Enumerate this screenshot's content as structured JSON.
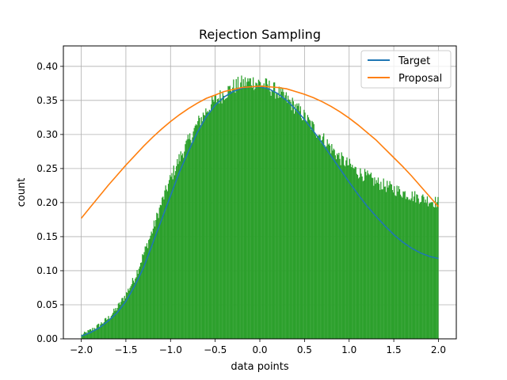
{
  "chart_data": {
    "type": "bar",
    "title": "Rejection Sampling",
    "xlabel": "data points",
    "ylabel": "count",
    "xlim": [
      -2.2,
      2.2
    ],
    "ylim": [
      0.0,
      0.43
    ],
    "x_ticks": [
      -2.0,
      -1.5,
      -1.0,
      -0.5,
      0.0,
      0.5,
      1.0,
      1.5,
      2.0
    ],
    "x_tick_labels": [
      "−2.0",
      "−1.5",
      "−1.0",
      "−0.5",
      "0.0",
      "0.5",
      "1.0",
      "1.5",
      "2.0"
    ],
    "y_ticks": [
      0.0,
      0.05,
      0.1,
      0.15,
      0.2,
      0.25,
      0.3,
      0.35,
      0.4
    ],
    "y_tick_labels": [
      "0.00",
      "0.05",
      "0.10",
      "0.15",
      "0.20",
      "0.25",
      "0.30",
      "0.35",
      "0.40"
    ],
    "grid": true,
    "legend": {
      "position": "top-right",
      "entries": [
        "Target",
        "Proposal"
      ]
    },
    "histogram": {
      "color": "#2ca02c",
      "bin_edges_range": [
        -2.0,
        2.0
      ],
      "bins": 400,
      "profile_x": [
        -2.0,
        -1.9,
        -1.8,
        -1.7,
        -1.6,
        -1.5,
        -1.4,
        -1.3,
        -1.2,
        -1.1,
        -1.0,
        -0.9,
        -0.8,
        -0.7,
        -0.6,
        -0.5,
        -0.4,
        -0.3,
        -0.2,
        -0.1,
        0.0,
        0.1,
        0.2,
        0.3,
        0.4,
        0.5,
        0.6,
        0.7,
        0.8,
        0.9,
        1.0,
        1.1,
        1.2,
        1.3,
        1.4,
        1.5,
        1.6,
        1.7,
        1.8,
        1.9,
        2.0
      ],
      "profile_y": [
        0.005,
        0.012,
        0.02,
        0.03,
        0.045,
        0.065,
        0.09,
        0.125,
        0.16,
        0.2,
        0.235,
        0.265,
        0.29,
        0.315,
        0.335,
        0.35,
        0.36,
        0.37,
        0.375,
        0.378,
        0.375,
        0.37,
        0.362,
        0.352,
        0.34,
        0.326,
        0.31,
        0.295,
        0.28,
        0.265,
        0.255,
        0.245,
        0.238,
        0.23,
        0.225,
        0.22,
        0.215,
        0.21,
        0.207,
        0.203,
        0.2
      ],
      "noise_amplitude": 0.012
    },
    "series": [
      {
        "name": "Target",
        "color": "#1f77b4",
        "x": [
          -2.0,
          -1.9,
          -1.8,
          -1.7,
          -1.6,
          -1.5,
          -1.4,
          -1.3,
          -1.2,
          -1.1,
          -1.0,
          -0.9,
          -0.8,
          -0.7,
          -0.6,
          -0.5,
          -0.4,
          -0.3,
          -0.2,
          -0.1,
          0.0,
          0.1,
          0.2,
          0.3,
          0.4,
          0.5,
          0.6,
          0.7,
          0.8,
          0.9,
          1.0,
          1.1,
          1.2,
          1.3,
          1.4,
          1.5,
          1.6,
          1.7,
          1.8,
          1.9,
          2.0
        ],
        "y": [
          0.004,
          0.009,
          0.016,
          0.026,
          0.038,
          0.055,
          0.078,
          0.105,
          0.14,
          0.175,
          0.21,
          0.245,
          0.275,
          0.303,
          0.326,
          0.343,
          0.355,
          0.363,
          0.368,
          0.37,
          0.37,
          0.367,
          0.36,
          0.35,
          0.337,
          0.322,
          0.305,
          0.287,
          0.268,
          0.249,
          0.23,
          0.212,
          0.195,
          0.18,
          0.166,
          0.153,
          0.142,
          0.133,
          0.126,
          0.121,
          0.118
        ]
      },
      {
        "name": "Proposal",
        "color": "#ff7f0e",
        "x": [
          -2.0,
          -1.9,
          -1.8,
          -1.7,
          -1.6,
          -1.5,
          -1.4,
          -1.3,
          -1.2,
          -1.1,
          -1.0,
          -0.9,
          -0.8,
          -0.7,
          -0.6,
          -0.5,
          -0.4,
          -0.3,
          -0.2,
          -0.1,
          0.0,
          0.1,
          0.2,
          0.3,
          0.4,
          0.5,
          0.6,
          0.7,
          0.8,
          0.9,
          1.0,
          1.1,
          1.2,
          1.3,
          1.4,
          1.5,
          1.6,
          1.7,
          1.8,
          1.9,
          2.0
        ],
        "y": [
          0.177,
          0.193,
          0.209,
          0.225,
          0.24,
          0.255,
          0.269,
          0.283,
          0.296,
          0.308,
          0.319,
          0.329,
          0.338,
          0.346,
          0.353,
          0.358,
          0.363,
          0.366,
          0.369,
          0.37,
          0.371,
          0.37,
          0.369,
          0.367,
          0.363,
          0.359,
          0.354,
          0.348,
          0.341,
          0.333,
          0.324,
          0.314,
          0.303,
          0.292,
          0.279,
          0.266,
          0.253,
          0.239,
          0.224,
          0.209,
          0.194
        ]
      }
    ]
  }
}
